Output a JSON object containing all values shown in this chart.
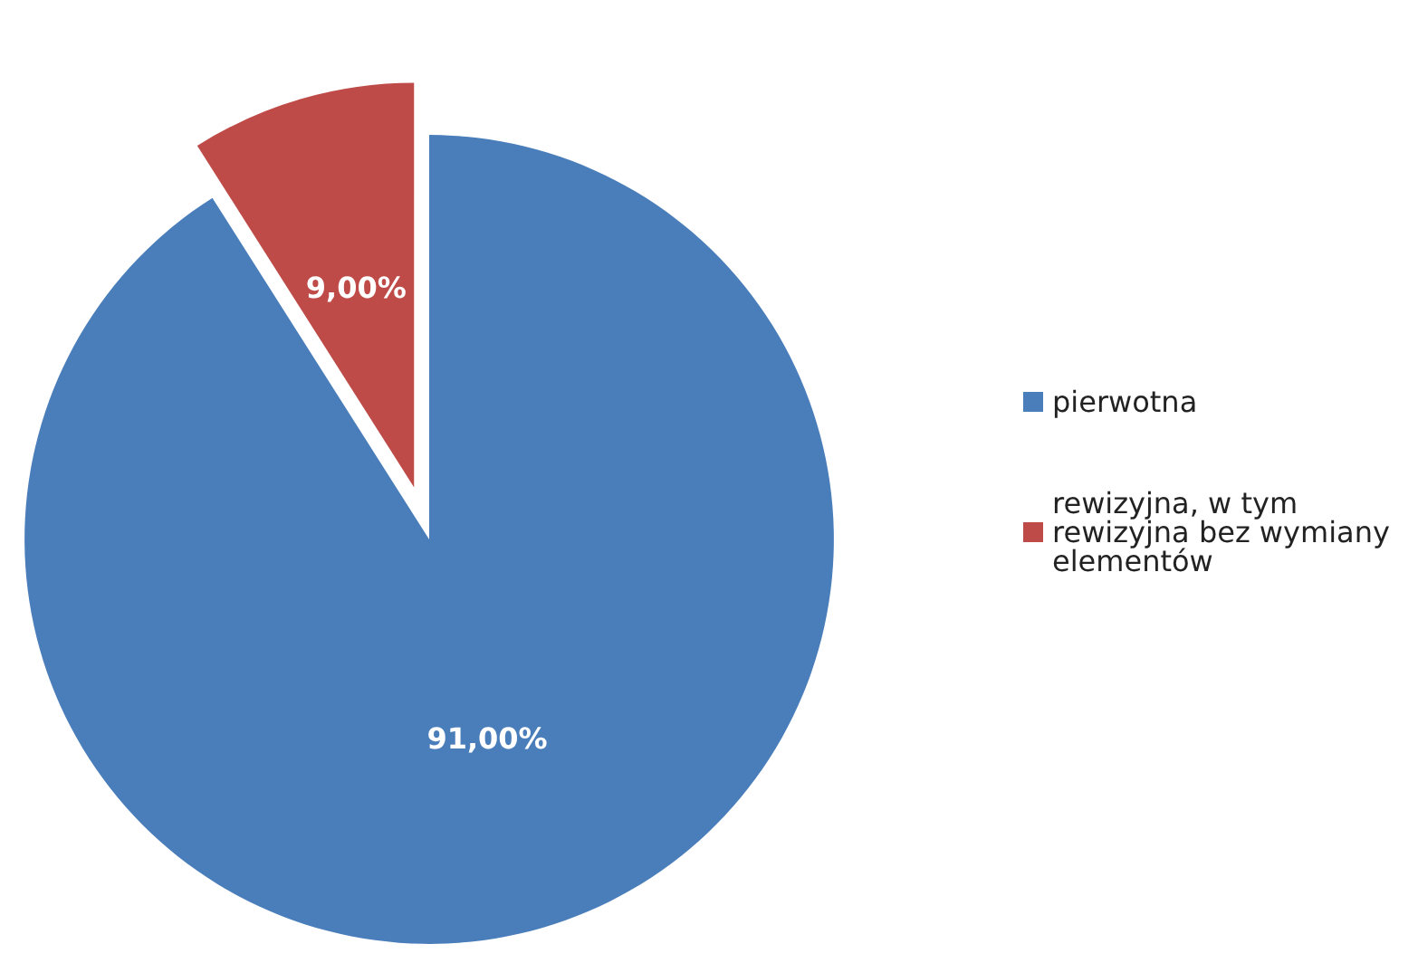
{
  "chart_data": {
    "type": "pie",
    "categories": [
      "pierwotna",
      "rewizyjna, w tym rewizyjna bez wymiany elementów"
    ],
    "values": [
      91,
      9
    ],
    "value_labels": [
      "91,00%",
      "9,00%"
    ],
    "colors": [
      "#4a7ebb",
      "#be4b48"
    ],
    "legend": "right"
  }
}
